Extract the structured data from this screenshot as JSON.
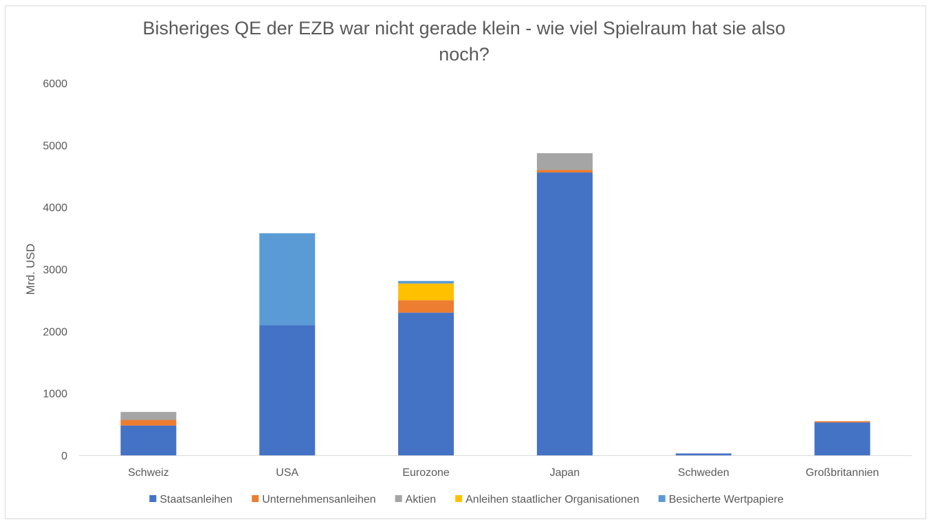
{
  "chart_data": {
    "type": "bar",
    "stacked": true,
    "title_line1": "Bisheriges QE der EZB war nicht gerade klein - wie viel Spielraum hat sie also",
    "title_line2": "noch?",
    "ylabel": "Mrd. USD",
    "xlabel": "",
    "ylim": [
      0,
      6000
    ],
    "yticks": [
      "0",
      "1000",
      "2000",
      "3000",
      "4000",
      "5000",
      "6000"
    ],
    "grid": false,
    "legend_position": "bottom",
    "categories": [
      "Schweiz",
      "USA",
      "Eurozone",
      "Japan",
      "Schweden",
      "Großbritannien"
    ],
    "series": [
      {
        "name": "Staatsanleihen",
        "color": "#4472c4",
        "values": [
          480,
          2100,
          2300,
          4560,
          30,
          530
        ]
      },
      {
        "name": "Unternehmensanleihen",
        "color": "#ed7d31",
        "values": [
          90,
          0,
          200,
          40,
          0,
          20
        ]
      },
      {
        "name": "Aktien",
        "color": "#a5a5a5",
        "values": [
          130,
          0,
          0,
          270,
          0,
          0
        ]
      },
      {
        "name": "Anleihen staatlicher Organisationen",
        "color": "#ffc000",
        "values": [
          0,
          0,
          270,
          0,
          0,
          0
        ]
      },
      {
        "name": "Besicherte Wertpapiere",
        "color": "#5b9bd5",
        "values": [
          0,
          1480,
          40,
          0,
          0,
          0
        ]
      }
    ]
  }
}
